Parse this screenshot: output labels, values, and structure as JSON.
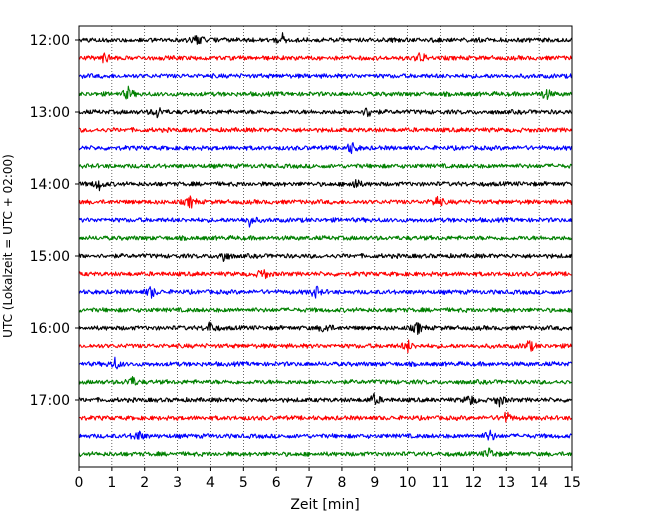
{
  "chart_data": {
    "type": "line",
    "subtype": "helicorder-seismogram",
    "xlabel": "Zeit  [min]",
    "ylabel": "UTC (Lokalzeit = UTC + 02:00)",
    "xlim": [
      0,
      15
    ],
    "x_ticks": [
      0,
      1,
      2,
      3,
      4,
      5,
      6,
      7,
      8,
      9,
      10,
      11,
      12,
      13,
      14,
      15
    ],
    "x_tick_labels": [
      "0",
      "1",
      "2",
      "3",
      "4",
      "5",
      "6",
      "7",
      "8",
      "9",
      "10",
      "11",
      "12",
      "13",
      "14",
      "15"
    ],
    "y_tick_labels": [
      "12:00",
      "13:00",
      "14:00",
      "15:00",
      "16:00",
      "17:00"
    ],
    "trace_start_times": [
      "12:00",
      "12:15",
      "12:30",
      "12:45",
      "13:00",
      "13:15",
      "13:30",
      "13:45",
      "14:00",
      "14:15",
      "14:30",
      "14:45",
      "15:00",
      "15:15",
      "15:30",
      "15:45",
      "16:00",
      "16:15",
      "16:30",
      "16:45",
      "17:00",
      "17:15",
      "17:30",
      "17:45"
    ],
    "trace_colors": [
      "#000000",
      "#ff0000",
      "#0000ff",
      "#008000"
    ],
    "grid": "vertical-dotted",
    "events": [
      {
        "trace": 0,
        "minute": 3.6
      },
      {
        "trace": 0,
        "minute": 6.2
      },
      {
        "trace": 1,
        "minute": 0.8
      },
      {
        "trace": 1,
        "minute": 10.4
      },
      {
        "trace": 3,
        "minute": 1.5
      },
      {
        "trace": 3,
        "minute": 14.2
      },
      {
        "trace": 4,
        "minute": 2.4
      },
      {
        "trace": 4,
        "minute": 8.8
      },
      {
        "trace": 6,
        "minute": 8.3
      },
      {
        "trace": 8,
        "minute": 8.4
      },
      {
        "trace": 8,
        "minute": 0.6
      },
      {
        "trace": 9,
        "minute": 10.9
      },
      {
        "trace": 9,
        "minute": 3.4
      },
      {
        "trace": 10,
        "minute": 5.2
      },
      {
        "trace": 12,
        "minute": 4.4
      },
      {
        "trace": 13,
        "minute": 5.6
      },
      {
        "trace": 14,
        "minute": 7.2
      },
      {
        "trace": 14,
        "minute": 2.2
      },
      {
        "trace": 16,
        "minute": 10.3
      },
      {
        "trace": 16,
        "minute": 7.5
      },
      {
        "trace": 16,
        "minute": 4.0
      },
      {
        "trace": 17,
        "minute": 13.7
      },
      {
        "trace": 17,
        "minute": 10.0
      },
      {
        "trace": 18,
        "minute": 1.1
      },
      {
        "trace": 19,
        "minute": 1.6
      },
      {
        "trace": 20,
        "minute": 9.0
      },
      {
        "trace": 20,
        "minute": 11.9
      },
      {
        "trace": 20,
        "minute": 12.8
      },
      {
        "trace": 21,
        "minute": 13.0
      },
      {
        "trace": 22,
        "minute": 1.8
      },
      {
        "trace": 22,
        "minute": 12.5
      },
      {
        "trace": 23,
        "minute": 12.5
      }
    ]
  }
}
